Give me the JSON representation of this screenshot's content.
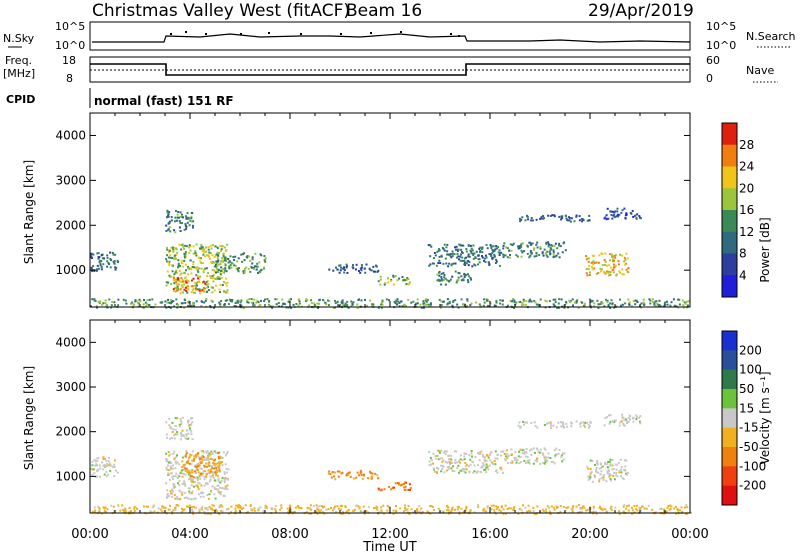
{
  "header": {
    "title": "Christmas Valley West (fitACF)",
    "beam": "Beam 16",
    "date": "29/Apr/2019"
  },
  "strips": {
    "nsky": {
      "label": "N.Sky",
      "ticks": [
        "10^5",
        "10^0"
      ],
      "right_label": "N.Search",
      "right_ticks": [
        "10^5",
        "10^0"
      ]
    },
    "freq": {
      "label_line1": "Freq.",
      "label_line2": "[MHz]",
      "ticks": [
        "18",
        "8"
      ],
      "right_label": "Nave",
      "right_ticks": [
        "60",
        "0"
      ]
    },
    "cpid": {
      "label": "CPID",
      "text": "normal (fast) 151 RF"
    }
  },
  "colorbars": {
    "power": {
      "label": "Power [dB]",
      "ticks": [
        "28",
        "24",
        "20",
        "16",
        "12",
        "8",
        "4"
      ],
      "colors": [
        "#1f1fdb",
        "#2d3f9e",
        "#2f6a7e",
        "#3b8a56",
        "#9bc53d",
        "#f0c419",
        "#f07f0f",
        "#e0200f"
      ]
    },
    "velocity": {
      "label": "Velocity [m s⁻¹]",
      "ticks": [
        "200",
        "100",
        "50",
        "15",
        "-15",
        "-50",
        "-100",
        "-200"
      ],
      "colors": [
        "#1a2fd0",
        "#2a4f9a",
        "#2d7a4a",
        "#6ac43a",
        "#c8c8c8",
        "#f0b020",
        "#f08010",
        "#f04010",
        "#e01010"
      ]
    }
  },
  "axes": {
    "ylabel": "Slant Range [km]",
    "yticks": [
      "4000",
      "3000",
      "2000",
      "1000"
    ],
    "xticks": [
      "00:00",
      "04:00",
      "08:00",
      "12:00",
      "16:00",
      "20:00",
      "00:00"
    ],
    "xlabel": "Time UT"
  },
  "chart_data": {
    "type": "heatmap",
    "title": "Christmas Valley West (fitACF)",
    "x_range_hours": [
      0,
      24
    ],
    "y_range_km": [
      180,
      4500
    ],
    "xlabel": "Time UT",
    "ylabel": "Slant Range [km]",
    "frequency_mhz_segments": [
      {
        "start_h": 0,
        "end_h": 3,
        "freq": 14.4
      },
      {
        "start_h": 3,
        "end_h": 15,
        "freq": 10.1
      },
      {
        "start_h": 15,
        "end_h": 24,
        "freq": 14.4
      }
    ],
    "power_regions_db": [
      {
        "t0": 0.0,
        "t1": 1.1,
        "r0": 1000,
        "r1": 1450,
        "power": 10
      },
      {
        "t0": 3.0,
        "t1": 5.5,
        "r0": 500,
        "r1": 1600,
        "power": 18
      },
      {
        "t0": 3.3,
        "t1": 4.6,
        "r0": 550,
        "r1": 850,
        "power": 26
      },
      {
        "t0": 3.0,
        "t1": 4.1,
        "r0": 1850,
        "r1": 2350,
        "power": 12
      },
      {
        "t0": 5.0,
        "t1": 7.0,
        "r0": 950,
        "r1": 1400,
        "power": 14
      },
      {
        "t0": 9.5,
        "t1": 11.5,
        "r0": 950,
        "r1": 1150,
        "power": 8
      },
      {
        "t0": 11.5,
        "t1": 12.8,
        "r0": 700,
        "r1": 900,
        "power": 16
      },
      {
        "t0": 13.5,
        "t1": 16.5,
        "r0": 1100,
        "r1": 1600,
        "power": 11
      },
      {
        "t0": 13.8,
        "t1": 15.2,
        "r0": 700,
        "r1": 1000,
        "power": 12
      },
      {
        "t0": 16.5,
        "t1": 19.0,
        "r0": 1300,
        "r1": 1650,
        "power": 12
      },
      {
        "t0": 17.0,
        "t1": 20.0,
        "r0": 2100,
        "r1": 2250,
        "power": 9
      },
      {
        "t0": 19.8,
        "t1": 21.5,
        "r0": 900,
        "r1": 1400,
        "power": 22
      },
      {
        "t0": 20.5,
        "t1": 22.0,
        "r0": 2150,
        "r1": 2400,
        "power": 7
      },
      {
        "t0": 0.0,
        "t1": 24.0,
        "r0": 180,
        "r1": 380,
        "power": 14
      }
    ],
    "velocity_regions_ms": [
      {
        "t0": 0.0,
        "t1": 1.1,
        "r0": 1000,
        "r1": 1450,
        "velocity": 0
      },
      {
        "t0": 3.0,
        "t1": 5.5,
        "r0": 500,
        "r1": 1600,
        "velocity": 0
      },
      {
        "t0": 3.6,
        "t1": 5.2,
        "r0": 1000,
        "r1": 1550,
        "velocity": -45
      },
      {
        "t0": 3.0,
        "t1": 4.1,
        "r0": 1850,
        "r1": 2350,
        "velocity": 0
      },
      {
        "t0": 9.5,
        "t1": 11.5,
        "r0": 950,
        "r1": 1150,
        "velocity": -60
      },
      {
        "t0": 11.5,
        "t1": 12.8,
        "r0": 700,
        "r1": 900,
        "velocity": -90
      },
      {
        "t0": 13.5,
        "t1": 16.5,
        "r0": 1100,
        "r1": 1600,
        "velocity": 0
      },
      {
        "t0": 16.5,
        "t1": 19.0,
        "r0": 1300,
        "r1": 1650,
        "velocity": 0
      },
      {
        "t0": 17.0,
        "t1": 20.0,
        "r0": 2100,
        "r1": 2250,
        "velocity": 0
      },
      {
        "t0": 19.8,
        "t1": 21.5,
        "r0": 900,
        "r1": 1400,
        "velocity": 0
      },
      {
        "t0": 20.5,
        "t1": 22.0,
        "r0": 2150,
        "r1": 2400,
        "velocity": 0
      },
      {
        "t0": 0.0,
        "t1": 24.0,
        "r0": 180,
        "r1": 380,
        "velocity": -30
      }
    ],
    "power_colorbar_ticks_db": [
      28,
      24,
      20,
      16,
      12,
      8,
      4
    ],
    "velocity_colorbar_ticks_ms": [
      200,
      100,
      50,
      15,
      -15,
      -50,
      -100,
      -200
    ]
  }
}
